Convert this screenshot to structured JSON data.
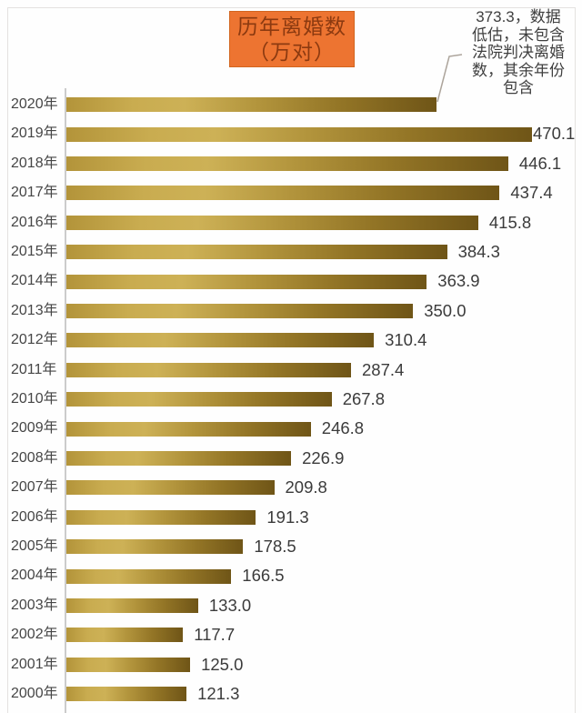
{
  "title": {
    "line1": "历年离婚数",
    "line2": "（万对）",
    "full": "历年离婚数（万对）"
  },
  "annotation": {
    "full_text": "373.3，数据低估，未包含法院判决离婚数，其余年份包含",
    "lines": [
      "373.3，数据",
      "低估，未包含",
      "法院判决离婚",
      "数，其余年份",
      "包含"
    ]
  },
  "chart_data": {
    "type": "bar",
    "orientation": "horizontal",
    "title": "历年离婚数（万对）",
    "xlabel": "",
    "ylabel": "",
    "xlim": [
      0,
      470.1
    ],
    "grid": false,
    "legend": false,
    "categories": [
      "2020年",
      "2019年",
      "2018年",
      "2017年",
      "2016年",
      "2015年",
      "2014年",
      "2013年",
      "2012年",
      "2011年",
      "2010年",
      "2009年",
      "2008年",
      "2007年",
      "2006年",
      "2005年",
      "2004年",
      "2003年",
      "2002年",
      "2001年",
      "2000年"
    ],
    "values": [
      373.3,
      470.1,
      446.1,
      437.4,
      415.8,
      384.3,
      363.9,
      350.0,
      310.4,
      287.4,
      267.8,
      246.8,
      226.9,
      209.8,
      191.3,
      178.5,
      166.5,
      133.0,
      117.7,
      125.0,
      121.3
    ],
    "value_labels": [
      "",
      "470.1",
      "446.1",
      "437.4",
      "415.8",
      "384.3",
      "363.9",
      "350.0",
      "310.4",
      "287.4",
      "267.8",
      "246.8",
      "226.9",
      "209.8",
      "191.3",
      "178.5",
      "166.5",
      "133.0",
      "117.7",
      "125.0",
      "121.3"
    ],
    "annotation_for": "2020年",
    "annotation_value": "373.3"
  },
  "colors": {
    "accent_orange": "#ED7431",
    "accent_orange_border": "#D2651F",
    "title_text": "#8C3A10",
    "label_text": "#3F3F3F",
    "axis_line": "#CCCCCC",
    "leader_line": "#ACA49B",
    "bar_gradient_stops": [
      "#B3943A 0%",
      "#C9AC50 18%",
      "#CDB156 32%",
      "#B2943C 52%",
      "#937526 74%",
      "#6F5517 100%"
    ]
  }
}
